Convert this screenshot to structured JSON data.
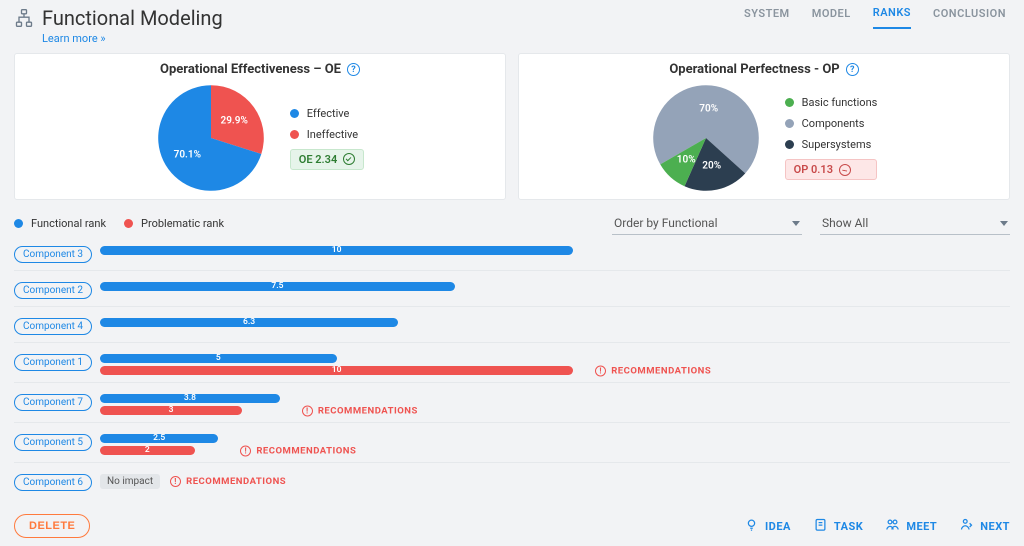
{
  "colors": {
    "blue": "#1e88e5",
    "red": "#ef5350",
    "green": "#4caf50",
    "slate": "#94a3b8",
    "dark": "#2c3e50"
  },
  "header": {
    "title": "Functional Modeling",
    "learn_more": "Learn more »",
    "nav": [
      {
        "label": "SYSTEM",
        "active": false
      },
      {
        "label": "MODEL",
        "active": false
      },
      {
        "label": "RANKS",
        "active": true
      },
      {
        "label": "CONCLUSION",
        "active": false
      }
    ]
  },
  "cards": {
    "oe": {
      "title": "Operational Effectiveness – OE",
      "pie": {
        "slices": [
          {
            "label": "70.1%",
            "pct": 70.1,
            "color": "#1e88e5"
          },
          {
            "label": "29.9%",
            "pct": 29.9,
            "color": "#ef5350"
          }
        ]
      },
      "legend": [
        {
          "label": "Effective",
          "color": "#1e88e5"
        },
        {
          "label": "Ineffective",
          "color": "#ef5350"
        }
      ],
      "badge": {
        "text": "OE 2.34",
        "kind": "good"
      }
    },
    "op": {
      "title": "Operational Perfectness - OP",
      "pie": {
        "slices": [
          {
            "label": "70%",
            "pct": 70,
            "color": "#94a3b8"
          },
          {
            "label": "20%",
            "pct": 20,
            "color": "#2c3e50"
          },
          {
            "label": "10%",
            "pct": 10,
            "color": "#4caf50"
          }
        ]
      },
      "legend": [
        {
          "label": "Basic functions",
          "color": "#4caf50"
        },
        {
          "label": "Components",
          "color": "#94a3b8"
        },
        {
          "label": "Supersystems",
          "color": "#2c3e50"
        }
      ],
      "badge": {
        "text": "OP 0.13",
        "kind": "bad"
      }
    }
  },
  "rank_legend": {
    "functional": "Functional rank",
    "problematic": "Problematic rank"
  },
  "controls": {
    "order_by": "Order by Functional",
    "show": "Show All"
  },
  "bar_scale_max": 10,
  "rows": [
    {
      "name": "Component 3",
      "functional": 10,
      "problematic": null,
      "recs": false
    },
    {
      "name": "Component 2",
      "functional": 7.5,
      "problematic": null,
      "recs": false
    },
    {
      "name": "Component 4",
      "functional": 6.3,
      "problematic": null,
      "recs": false
    },
    {
      "name": "Component 1",
      "functional": 5,
      "problematic": 10,
      "recs": true
    },
    {
      "name": "Component 7",
      "functional": 3.8,
      "problematic": 3,
      "recs": true
    },
    {
      "name": "Component 5",
      "functional": 2.5,
      "problematic": 2,
      "recs": true
    },
    {
      "name": "Component 6",
      "functional": null,
      "problematic": null,
      "no_impact": "No impact",
      "recs": true
    }
  ],
  "strings": {
    "recommendations": "RECOMMENDATIONS",
    "delete": "DELETE"
  },
  "footer_actions": [
    {
      "key": "idea",
      "label": "IDEA"
    },
    {
      "key": "task",
      "label": "TASK"
    },
    {
      "key": "meet",
      "label": "MEET"
    },
    {
      "key": "next",
      "label": "NEXT"
    }
  ]
}
